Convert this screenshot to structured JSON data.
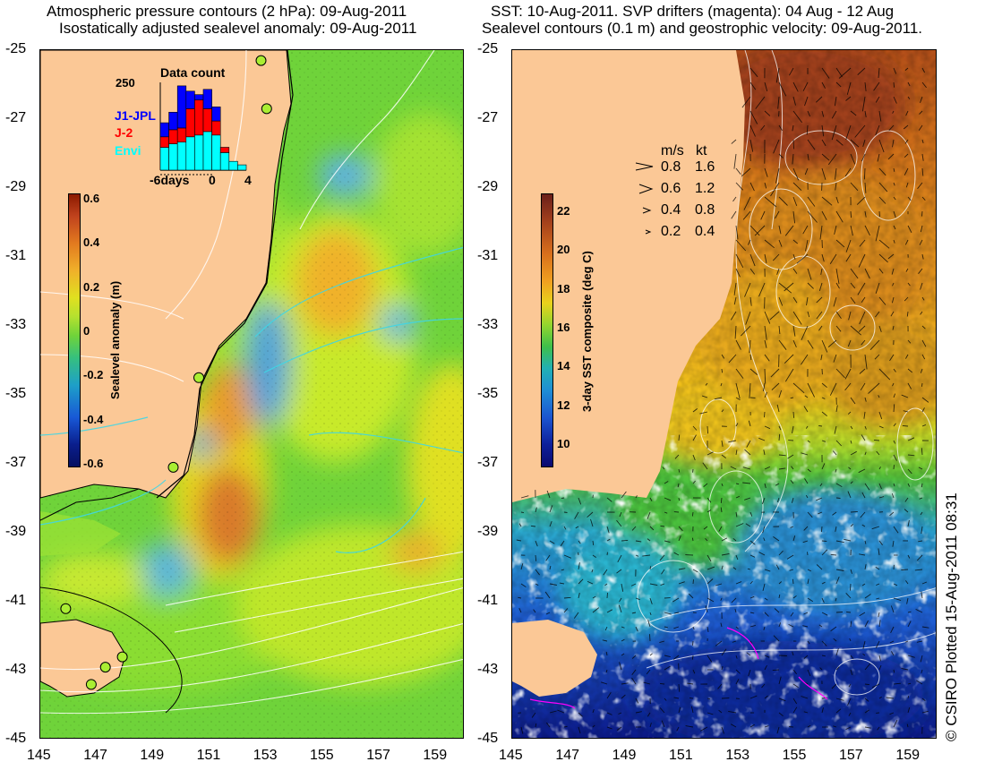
{
  "left_panel": {
    "title_line1": "Atmospheric pressure contours (2 hPa): 09-Aug-2011",
    "title_line2": "Isostatically adjusted sealevel anomaly: 09-Aug-2011",
    "colorbar_label": "Sealevel anomaly (m)",
    "colorbar_ticks": [
      "0.6",
      "0.4",
      "0.2",
      "0",
      "-0.2",
      "-0.4",
      "-0.6"
    ],
    "inset": {
      "title": "Data count",
      "y_max_label": "250",
      "x_tick_labels": [
        "-6days",
        "0",
        "4"
      ],
      "legend": [
        {
          "label": "J1-JPL",
          "color": "#0000ff"
        },
        {
          "label": "J-2",
          "color": "#ff0000"
        },
        {
          "label": "Envi",
          "color": "#00ffff"
        }
      ]
    }
  },
  "right_panel": {
    "title_line1": "SST: 10-Aug-2011. SVP drifters (magenta): 04 Aug - 12 Aug",
    "title_line2": "Sealevel contours (0.1 m) and geostrophic velocity: 09-Aug-2011.",
    "colorbar_label": "3-day SST composite (deg C)",
    "colorbar_ticks": [
      "22",
      "20",
      "18",
      "16",
      "14",
      "12",
      "10"
    ],
    "speed_legend": {
      "header_ms": "m/s",
      "header_kt": "kt",
      "rows": [
        {
          "ms": "0.8",
          "kt": "1.6"
        },
        {
          "ms": "0.6",
          "kt": "1.2"
        },
        {
          "ms": "0.4",
          "kt": "0.8"
        },
        {
          "ms": "0.2",
          "kt": "0.4"
        }
      ]
    }
  },
  "credit": "© CSIRO Plotted 15-Aug-2011 08:31",
  "chart_data": [
    {
      "type": "heatmap",
      "title": "Atmospheric pressure contours (2 hPa): 09-Aug-2011 / Isostatically adjusted sealevel anomaly: 09-Aug-2011",
      "x_ticks": [
        "145",
        "147",
        "149",
        "151",
        "153",
        "155",
        "157",
        "159"
      ],
      "y_ticks": [
        "-25",
        "-27",
        "-29",
        "-31",
        "-33",
        "-35",
        "-37",
        "-39",
        "-41",
        "-43",
        "-45"
      ],
      "xlim": [
        145,
        160
      ],
      "ylim": [
        -45,
        -25
      ],
      "colorbar": {
        "label": "Sealevel anomaly (m)",
        "range": [
          -0.6,
          0.6
        ]
      },
      "features": [
        {
          "value": 0.35,
          "lon": 151.8,
          "lat": -38.5
        },
        {
          "value": 0.3,
          "lon": 150.9,
          "lat": -35.6
        },
        {
          "value": 0.2,
          "lon": 155.7,
          "lat": -31.8
        },
        {
          "value": 0.2,
          "lon": 151.7,
          "lat": -37.5
        },
        {
          "value": 0.2,
          "lon": 159.2,
          "lat": -36.0
        },
        {
          "value": -0.25,
          "lon": 153.8,
          "lat": -34.0
        },
        {
          "value": -0.2,
          "lon": 155.3,
          "lat": -28.8
        },
        {
          "value": -0.15,
          "lon": 156.4,
          "lat": -33.3
        }
      ],
      "tide_gauges": [
        {
          "lon": 152.8,
          "lat": -25.3
        },
        {
          "lon": 153.0,
          "lat": -26.7
        },
        {
          "lon": 150.6,
          "lat": -34.5
        },
        {
          "lon": 149.7,
          "lat": -37.1
        },
        {
          "lon": 145.9,
          "lat": -41.2
        },
        {
          "lon": 147.9,
          "lat": -42.6
        },
        {
          "lon": 147.3,
          "lat": -42.9
        },
        {
          "lon": 146.8,
          "lat": -43.4
        }
      ],
      "inset_chart": {
        "type": "bar",
        "title": "Data count",
        "x": [
          -6,
          -5,
          -4,
          -3,
          -2,
          -1,
          0,
          1,
          2,
          3
        ],
        "series": [
          {
            "name": "Envi",
            "values": [
              65,
              75,
              80,
              95,
              100,
              110,
              100,
              50,
              25,
              15
            ]
          },
          {
            "name": "J-2",
            "values": [
              30,
              40,
              40,
              80,
              100,
              65,
              40,
              15,
              0,
              0
            ]
          },
          {
            "name": "J1-JPL",
            "values": [
              40,
              50,
              120,
              50,
              15,
              55,
              40,
              0,
              0,
              0
            ]
          }
        ],
        "ylim": [
          0,
          250
        ],
        "x_ticks": [
          -6,
          0,
          4
        ]
      }
    },
    {
      "type": "heatmap",
      "title": "SST: 10-Aug-2011. SVP drifters (magenta): 04 Aug - 12 Aug / Sealevel contours (0.1 m) and geostrophic velocity: 09-Aug-2011.",
      "x_ticks": [
        "145",
        "147",
        "149",
        "151",
        "153",
        "155",
        "157",
        "159"
      ],
      "y_ticks": [
        "-25",
        "-27",
        "-29",
        "-31",
        "-33",
        "-35",
        "-37",
        "-39",
        "-41",
        "-43",
        "-45"
      ],
      "xlim": [
        145,
        160
      ],
      "ylim": [
        -45,
        -25
      ],
      "colorbar": {
        "label": "3-day SST composite (deg C)",
        "range": [
          9,
          23
        ]
      },
      "features": [
        {
          "value": 22,
          "lon": 156.5,
          "lat": -26.0
        },
        {
          "value": 20.5,
          "lon": 155.0,
          "lat": -29.5
        },
        {
          "value": 19,
          "lon": 154.0,
          "lat": -33.5
        },
        {
          "value": 17,
          "lon": 153.0,
          "lat": -36.2
        },
        {
          "value": 15,
          "lon": 153.0,
          "lat": -38.5
        },
        {
          "value": 13,
          "lon": 152.0,
          "lat": -41.5
        },
        {
          "value": 11,
          "lon": 154.0,
          "lat": -44.5
        }
      ],
      "speed_legend": [
        {
          "ms": 0.8,
          "kt": 1.6
        },
        {
          "ms": 0.6,
          "kt": 1.2
        },
        {
          "ms": 0.4,
          "kt": 0.8
        },
        {
          "ms": 0.2,
          "kt": 0.4
        }
      ]
    }
  ]
}
